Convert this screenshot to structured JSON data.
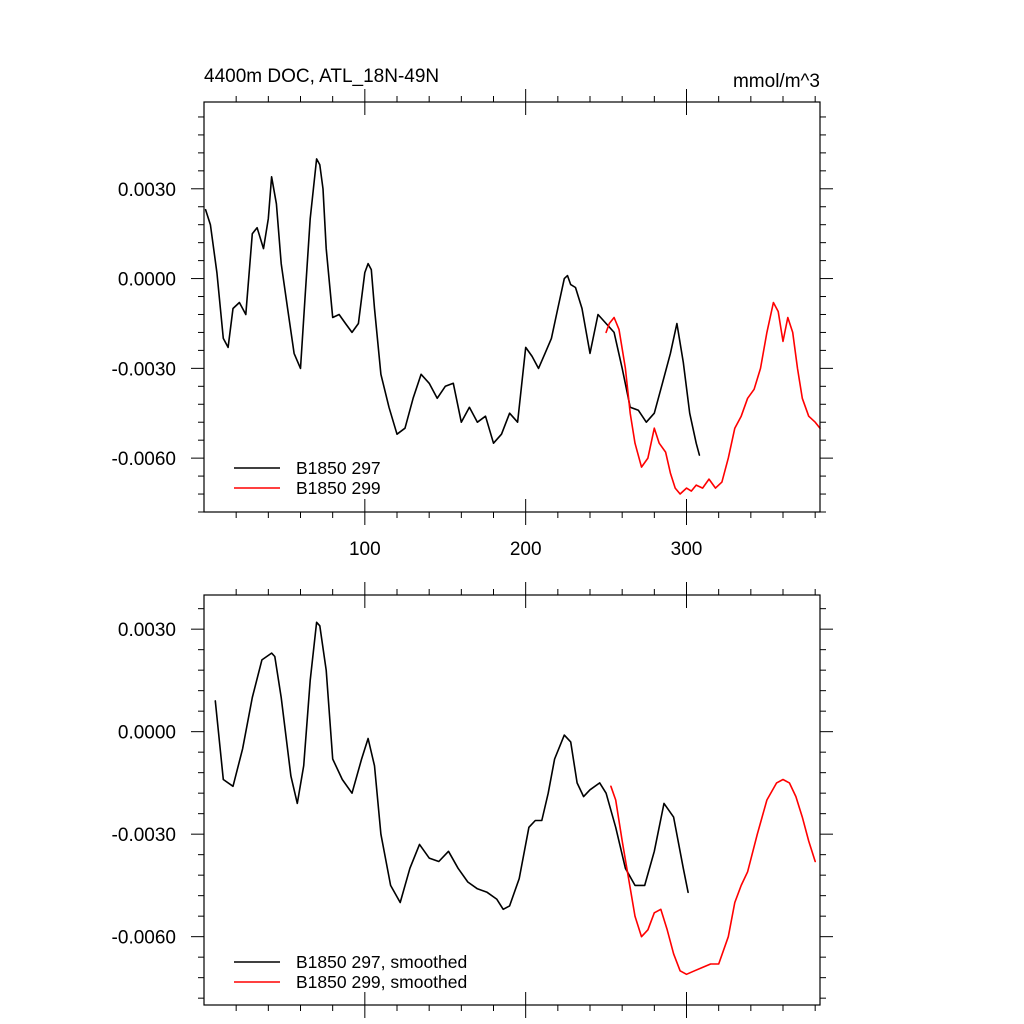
{
  "chart_data": [
    {
      "type": "line",
      "title": "4400m DOC, ATL_18N-49N",
      "units": "mmol/m^3",
      "xlim": [
        0,
        383
      ],
      "ylim": [
        -0.0078,
        0.0059
      ],
      "xticks": [
        100,
        200,
        300
      ],
      "xtick_labels": [
        "100",
        "200",
        "300"
      ],
      "yticks": [
        0.003,
        0.0,
        -0.003,
        -0.006
      ],
      "ytick_labels": [
        "0.0030",
        "0.0000",
        "-0.0030",
        "-0.0060"
      ],
      "legend_position": "bottom-left",
      "series": [
        {
          "name": "B1850 297",
          "color": "#000000",
          "x": [
            1,
            4,
            8,
            12,
            15,
            18,
            22,
            26,
            30,
            33,
            37,
            40,
            42,
            45,
            48,
            52,
            56,
            60,
            63,
            66,
            68,
            70,
            72,
            74,
            76,
            80,
            84,
            88,
            92,
            96,
            100,
            102,
            104,
            106,
            110,
            115,
            120,
            125,
            130,
            135,
            140,
            145,
            150,
            155,
            160,
            165,
            170,
            175,
            180,
            185,
            190,
            195,
            200,
            204,
            208,
            212,
            216,
            220,
            224,
            226,
            228,
            231,
            235,
            240,
            245,
            250,
            255,
            260,
            265,
            270,
            275,
            280,
            285,
            290,
            294,
            298,
            302,
            306,
            308
          ],
          "y": [
            0.0023,
            0.0018,
            0.0002,
            -0.002,
            -0.0023,
            -0.001,
            -0.0008,
            -0.0012,
            0.0015,
            0.0017,
            0.001,
            0.002,
            0.0034,
            0.0025,
            0.0005,
            -0.001,
            -0.0025,
            -0.003,
            -0.0005,
            0.002,
            0.003,
            0.004,
            0.0038,
            0.003,
            0.001,
            -0.0013,
            -0.0012,
            -0.0015,
            -0.0018,
            -0.0015,
            0.0002,
            0.0005,
            0.0003,
            -0.001,
            -0.0032,
            -0.0043,
            -0.0052,
            -0.005,
            -0.004,
            -0.0032,
            -0.0035,
            -0.004,
            -0.0036,
            -0.0035,
            -0.0048,
            -0.0043,
            -0.0048,
            -0.0046,
            -0.0055,
            -0.0052,
            -0.0045,
            -0.0048,
            -0.0023,
            -0.0026,
            -0.003,
            -0.0025,
            -0.002,
            -0.001,
            0.0,
            0.0001,
            -0.0002,
            -0.0003,
            -0.001,
            -0.0025,
            -0.0012,
            -0.0015,
            -0.0018,
            -0.003,
            -0.0043,
            -0.0044,
            -0.0048,
            -0.0045,
            -0.0035,
            -0.0025,
            -0.0015,
            -0.0028,
            -0.0045,
            -0.0055,
            -0.0059
          ]
        },
        {
          "name": "B1850 299",
          "color": "#ff0000",
          "x": [
            250,
            252,
            255,
            258,
            262,
            265,
            268,
            272,
            276,
            280,
            283,
            287,
            290,
            293,
            296,
            300,
            303,
            306,
            310,
            314,
            318,
            322,
            326,
            330,
            334,
            338,
            342,
            346,
            350,
            354,
            357,
            360,
            363,
            366,
            369,
            372,
            376,
            380,
            383
          ],
          "y": [
            -0.0018,
            -0.0015,
            -0.0013,
            -0.0017,
            -0.003,
            -0.0045,
            -0.0055,
            -0.0063,
            -0.006,
            -0.005,
            -0.0055,
            -0.0058,
            -0.0065,
            -0.007,
            -0.0072,
            -0.007,
            -0.0071,
            -0.0069,
            -0.007,
            -0.0067,
            -0.007,
            -0.0068,
            -0.006,
            -0.005,
            -0.0046,
            -0.004,
            -0.0037,
            -0.003,
            -0.0018,
            -0.0008,
            -0.0011,
            -0.0021,
            -0.0013,
            -0.0018,
            -0.003,
            -0.004,
            -0.0046,
            -0.0048,
            -0.005
          ]
        }
      ]
    },
    {
      "type": "line",
      "title": "",
      "xlim": [
        0,
        383
      ],
      "ylim": [
        -0.008,
        0.004
      ],
      "xticks": [
        100,
        200,
        300
      ],
      "yticks": [
        0.003,
        0.0,
        -0.003,
        -0.006
      ],
      "ytick_labels": [
        "0.0030",
        "0.0000",
        "-0.0030",
        "-0.0060"
      ],
      "legend_position": "bottom-left",
      "series": [
        {
          "name": "B1850 297, smoothed",
          "color": "#000000",
          "x": [
            7,
            12,
            18,
            24,
            30,
            36,
            42,
            44,
            48,
            54,
            58,
            62,
            66,
            70,
            72,
            76,
            80,
            86,
            92,
            98,
            102,
            106,
            110,
            116,
            122,
            128,
            134,
            140,
            146,
            152,
            158,
            164,
            170,
            176,
            182,
            186,
            190,
            196,
            202,
            206,
            210,
            214,
            218,
            224,
            228,
            232,
            236,
            240,
            246,
            250,
            256,
            262,
            268,
            274,
            280,
            286,
            292,
            298,
            301
          ],
          "y": [
            0.0009,
            -0.0014,
            -0.0016,
            -0.0005,
            0.001,
            0.0021,
            0.0023,
            0.0022,
            0.001,
            -0.0013,
            -0.0021,
            -0.001,
            0.0015,
            0.0032,
            0.0031,
            0.0018,
            -0.0008,
            -0.0014,
            -0.0018,
            -0.0008,
            -0.0002,
            -0.001,
            -0.003,
            -0.0045,
            -0.005,
            -0.004,
            -0.0033,
            -0.0037,
            -0.0038,
            -0.0035,
            -0.004,
            -0.0044,
            -0.0046,
            -0.0047,
            -0.0049,
            -0.0052,
            -0.0051,
            -0.0043,
            -0.0028,
            -0.0026,
            -0.0026,
            -0.0018,
            -0.0008,
            -0.0001,
            -0.0003,
            -0.0015,
            -0.0019,
            -0.0017,
            -0.0015,
            -0.0018,
            -0.0028,
            -0.004,
            -0.0045,
            -0.0045,
            -0.0035,
            -0.0021,
            -0.0025,
            -0.004,
            -0.0047
          ]
        },
        {
          "name": "B1850 299, smoothed",
          "color": "#ff0000",
          "x": [
            253,
            256,
            260,
            264,
            268,
            272,
            276,
            280,
            284,
            288,
            292,
            296,
            300,
            305,
            310,
            315,
            320,
            326,
            330,
            334,
            338,
            344,
            350,
            356,
            360,
            364,
            368,
            372,
            376,
            380
          ],
          "y": [
            -0.0016,
            -0.002,
            -0.0032,
            -0.0043,
            -0.0054,
            -0.006,
            -0.0058,
            -0.0053,
            -0.0052,
            -0.0058,
            -0.0065,
            -0.007,
            -0.0071,
            -0.007,
            -0.0069,
            -0.0068,
            -0.0068,
            -0.006,
            -0.005,
            -0.0045,
            -0.0041,
            -0.003,
            -0.002,
            -0.0015,
            -0.0014,
            -0.0015,
            -0.0019,
            -0.0025,
            -0.0032,
            -0.0038
          ]
        }
      ]
    }
  ]
}
